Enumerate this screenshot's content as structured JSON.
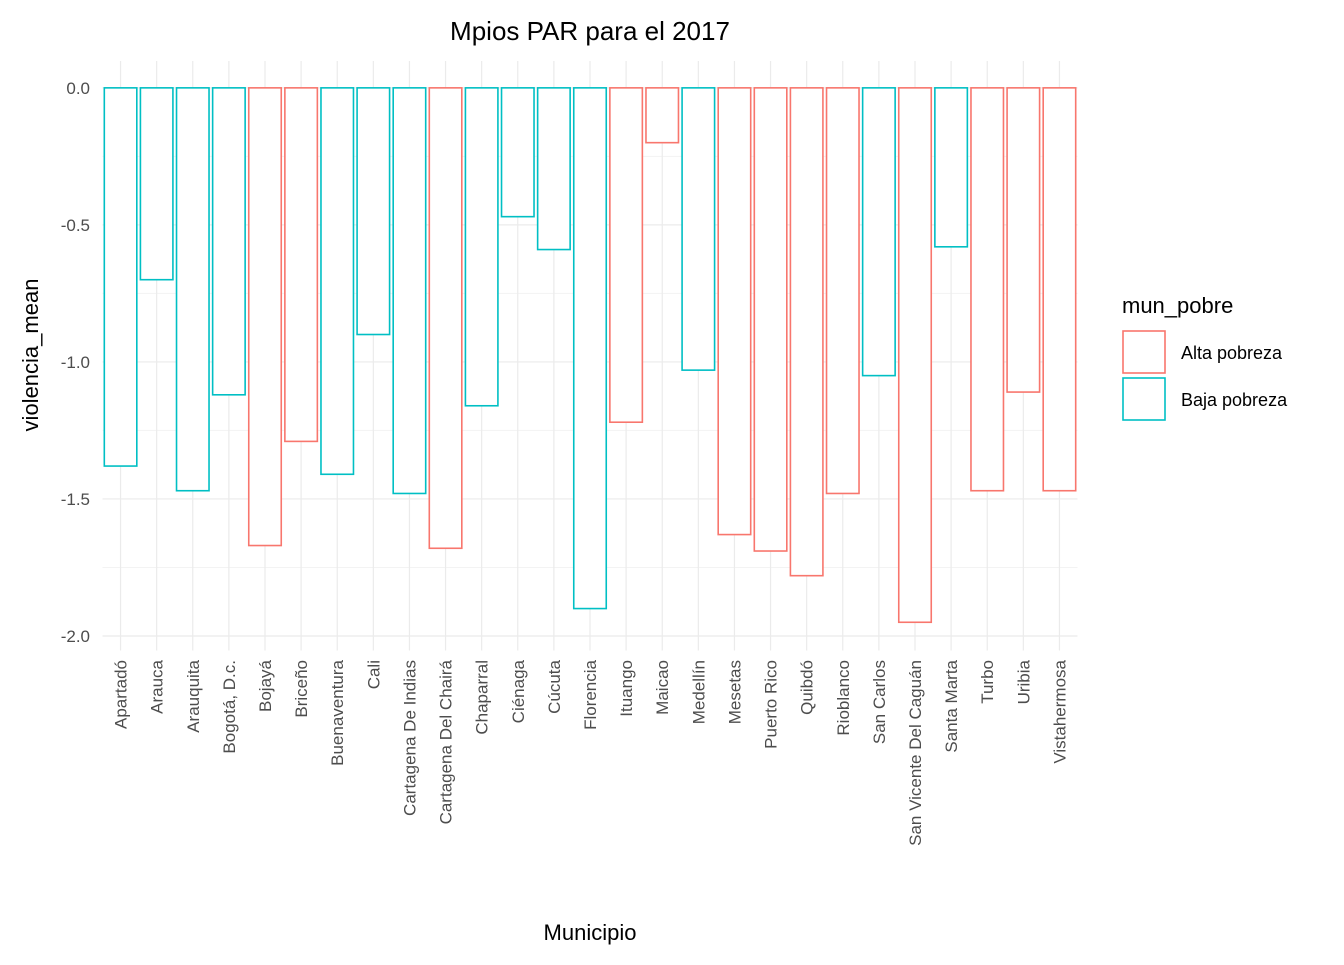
{
  "chart_data": {
    "type": "bar",
    "title": "Mpios PAR para el 2017",
    "x_label": "Municipio",
    "y_label": "violencia_mean",
    "legend_title": "mun_pobre",
    "categories": [
      "Apartadó",
      "Arauca",
      "Arauquita",
      "Bogotá, D.c.",
      "Bojayá",
      "Briceño",
      "Buenaventura",
      "Cali",
      "Cartagena De Indias",
      "Cartagena Del Chairá",
      "Chaparral",
      "Ciénaga",
      "Cúcuta",
      "Florencia",
      "Ituango",
      "Maicao",
      "Medellín",
      "Mesetas",
      "Puerto Rico",
      "Quibdó",
      "Rioblanco",
      "San Carlos",
      "San Vicente Del Caguán",
      "Santa Marta",
      "Turbo",
      "Uribia",
      "Vistahermosa"
    ],
    "series": [
      {
        "name": "Alta pobreza",
        "color": "#F8766D",
        "values": [
          null,
          null,
          null,
          null,
          -1.67,
          -1.29,
          null,
          null,
          null,
          -1.68,
          null,
          null,
          null,
          null,
          -1.22,
          -0.2,
          null,
          -1.63,
          -1.69,
          -1.78,
          -1.48,
          null,
          -1.95,
          null,
          -1.47,
          -1.11,
          -1.47
        ]
      },
      {
        "name": "Baja pobreza",
        "color": "#00BFC4",
        "values": [
          -1.38,
          -0.7,
          -1.47,
          -1.12,
          null,
          null,
          -1.41,
          -0.9,
          -1.48,
          null,
          -1.16,
          -0.47,
          -0.59,
          -1.9,
          null,
          null,
          -1.03,
          null,
          null,
          null,
          null,
          -1.05,
          null,
          -0.58,
          null,
          null,
          null
        ]
      }
    ],
    "ylim": [
      -2.053,
      0.098
    ],
    "yticks": [
      {
        "value": 0,
        "label": "0.0"
      },
      -0.5,
      {
        "value": -1,
        "label": "-1.0"
      },
      -1.5,
      {
        "value": -2,
        "label": "-2.0"
      }
    ],
    "grid": true,
    "legend": "right"
  }
}
